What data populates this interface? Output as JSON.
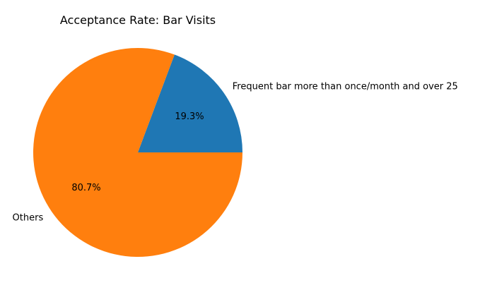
{
  "chart_data": {
    "type": "pie",
    "title": "Acceptance Rate: Bar Visits",
    "labels": [
      "Frequent bar more than once/month and over 25",
      "Others"
    ],
    "values": [
      19.3,
      80.7
    ],
    "value_labels": [
      "19.3%",
      "80.7%"
    ],
    "colors": [
      "#1f77b4",
      "#ff7f0e"
    ],
    "start_angle_deg": 0,
    "direction": "counterclockwise",
    "legend": "none"
  }
}
